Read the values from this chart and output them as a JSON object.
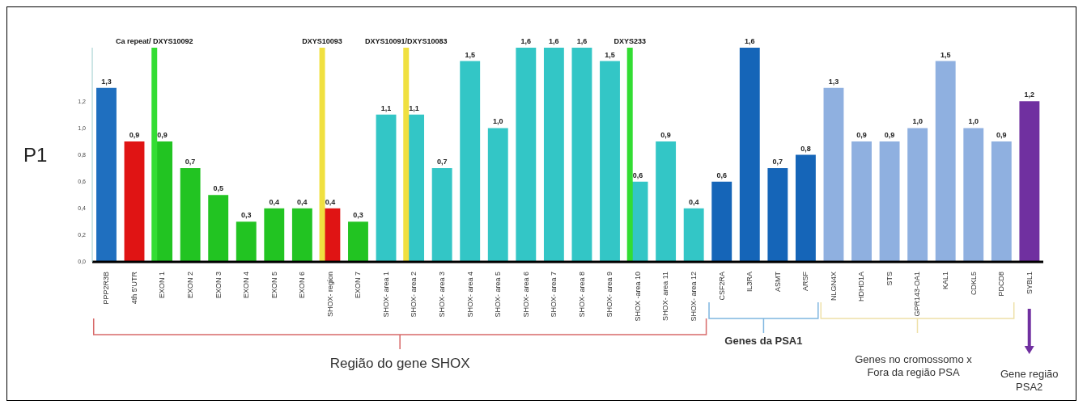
{
  "chart_data": {
    "type": "bar",
    "ylabel": "P1",
    "categories": [
      "PPP2R3B",
      "4th 5'UTR",
      "EXON 1",
      "EXON 2",
      "EXON 3",
      "EXON 4",
      "EXON 5",
      "EXON 6",
      "SHOX- region",
      "EXON 7",
      "SHOX- area 1",
      "SHOX- area 2",
      "SHOX- area 3",
      "SHOX- area 4",
      "SHOX- area 5",
      "SHOX- area 6",
      "SHOX- area 7",
      "SHOX- area 8",
      "SHOX- area 9",
      "SHOX -area 10",
      "SHOX- area 11",
      "SHOX- area 12",
      "CSF2RA",
      "IL3RA",
      "ASMT",
      "ARSF",
      "NLGN4X",
      "HDHD1A",
      "STS",
      "GPR143-OA1",
      "KAL1",
      "CDKL5",
      "PDCD8",
      "SYBL1"
    ],
    "values": [
      1.3,
      0.9,
      0.9,
      0.7,
      0.5,
      0.3,
      0.4,
      0.4,
      0.4,
      0.3,
      1.1,
      1.1,
      0.7,
      1.5,
      1.0,
      1.6,
      1.6,
      1.6,
      1.5,
      0.6,
      0.9,
      0.4,
      0.6,
      1.6,
      0.7,
      0.8,
      1.3,
      0.9,
      0.9,
      1.0,
      1.5,
      1.0,
      0.9,
      1.2
    ],
    "value_labels": [
      "1,3",
      "0,9",
      "0,9",
      "0,7",
      "0,5",
      "0,3",
      "0,4",
      "0,4",
      "0,4",
      "0,3",
      "1,1",
      "1,1",
      "0,7",
      "1,5",
      "1,0",
      "1,6",
      "1,6",
      "1,6",
      "1,5",
      "0,6",
      "0,9",
      "0,4",
      "0,6",
      "1,6",
      "0,7",
      "0,8",
      "1,3",
      "0,9",
      "0,9",
      "1,0",
      "1,5",
      "1,0",
      "0,9",
      "1,2"
    ],
    "colors": [
      "#1f6fbf",
      "#e01414",
      "#22c422",
      "#22c422",
      "#22c422",
      "#22c422",
      "#22c422",
      "#22c422",
      "#e01414",
      "#22c422",
      "#33c6c6",
      "#33c6c6",
      "#33c6c6",
      "#33c6c6",
      "#33c6c6",
      "#33c6c6",
      "#33c6c6",
      "#33c6c6",
      "#33c6c6",
      "#33c6c6",
      "#33c6c6",
      "#33c6c6",
      "#1565b8",
      "#1565b8",
      "#1565b8",
      "#1565b8",
      "#8fb0e0",
      "#8fb0e0",
      "#8fb0e0",
      "#8fb0e0",
      "#8fb0e0",
      "#8fb0e0",
      "#8fb0e0",
      "#7030a0"
    ],
    "ylim": [
      0,
      1.6
    ],
    "yticks": [
      {
        "value": 0,
        "label": "0,0"
      },
      {
        "value": 0.2,
        "label": "0,2"
      },
      {
        "value": 0.4,
        "label": "0,4"
      },
      {
        "value": 0.6,
        "label": "0,6"
      },
      {
        "value": 0.8,
        "label": "0,8"
      },
      {
        "value": 1.0,
        "label": "1,0"
      },
      {
        "value": 1.2,
        "label": "1,2"
      }
    ],
    "ref_lines": [
      {
        "axis": "x",
        "value": "EXON 1",
        "label": "Ca repeat/ DXYS10092",
        "color": "#33dd33"
      },
      {
        "axis": "x",
        "value": "SHOX- region",
        "label": "DXYS10093",
        "color": "#f0e040"
      },
      {
        "axis": "x",
        "value": "SHOX- area 2",
        "label": "DXYS10091/DXYS10083",
        "color": "#f0e040"
      },
      {
        "axis": "x",
        "value": "SHOX -area 10",
        "label": "DXYS233",
        "color": "#33dd33"
      }
    ],
    "annotations": [
      "Região do gene SHOX",
      "Genes da PSA1",
      "Genes no cromossomo x Fora da região PSA",
      "Gene região PSA2"
    ]
  }
}
